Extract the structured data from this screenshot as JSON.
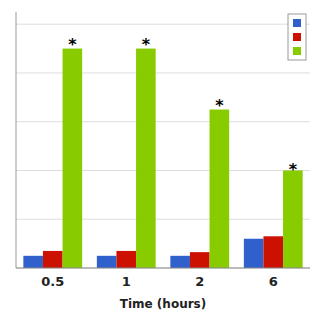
{
  "chart_data": {
    "type": "bar",
    "categories": [
      "0.5",
      "1",
      "2",
      "6"
    ],
    "series": [
      {
        "color": "#3060CC",
        "values": [
          0.5,
          0.5,
          0.5,
          1.2
        ]
      },
      {
        "color": "#CC1100",
        "values": [
          0.7,
          0.7,
          0.65,
          1.3
        ]
      },
      {
        "color": "#88CC00",
        "values": [
          9.0,
          9.0,
          6.5,
          4.0
        ]
      }
    ],
    "annotations": [
      {
        "text": "*",
        "category": "0.5",
        "y": 9.3
      },
      {
        "text": "*",
        "category": "1",
        "y": 9.3
      },
      {
        "text": "*",
        "category": "2",
        "y": 6.8
      },
      {
        "text": "*",
        "category": "6",
        "y": 4.2
      }
    ],
    "xlabel": "Time (hours)",
    "ylim": [
      0,
      10.5
    ],
    "yticks": [
      0,
      2,
      4,
      6,
      8,
      10
    ],
    "grid": true,
    "tick_labels": "x",
    "legend": "upper right"
  }
}
